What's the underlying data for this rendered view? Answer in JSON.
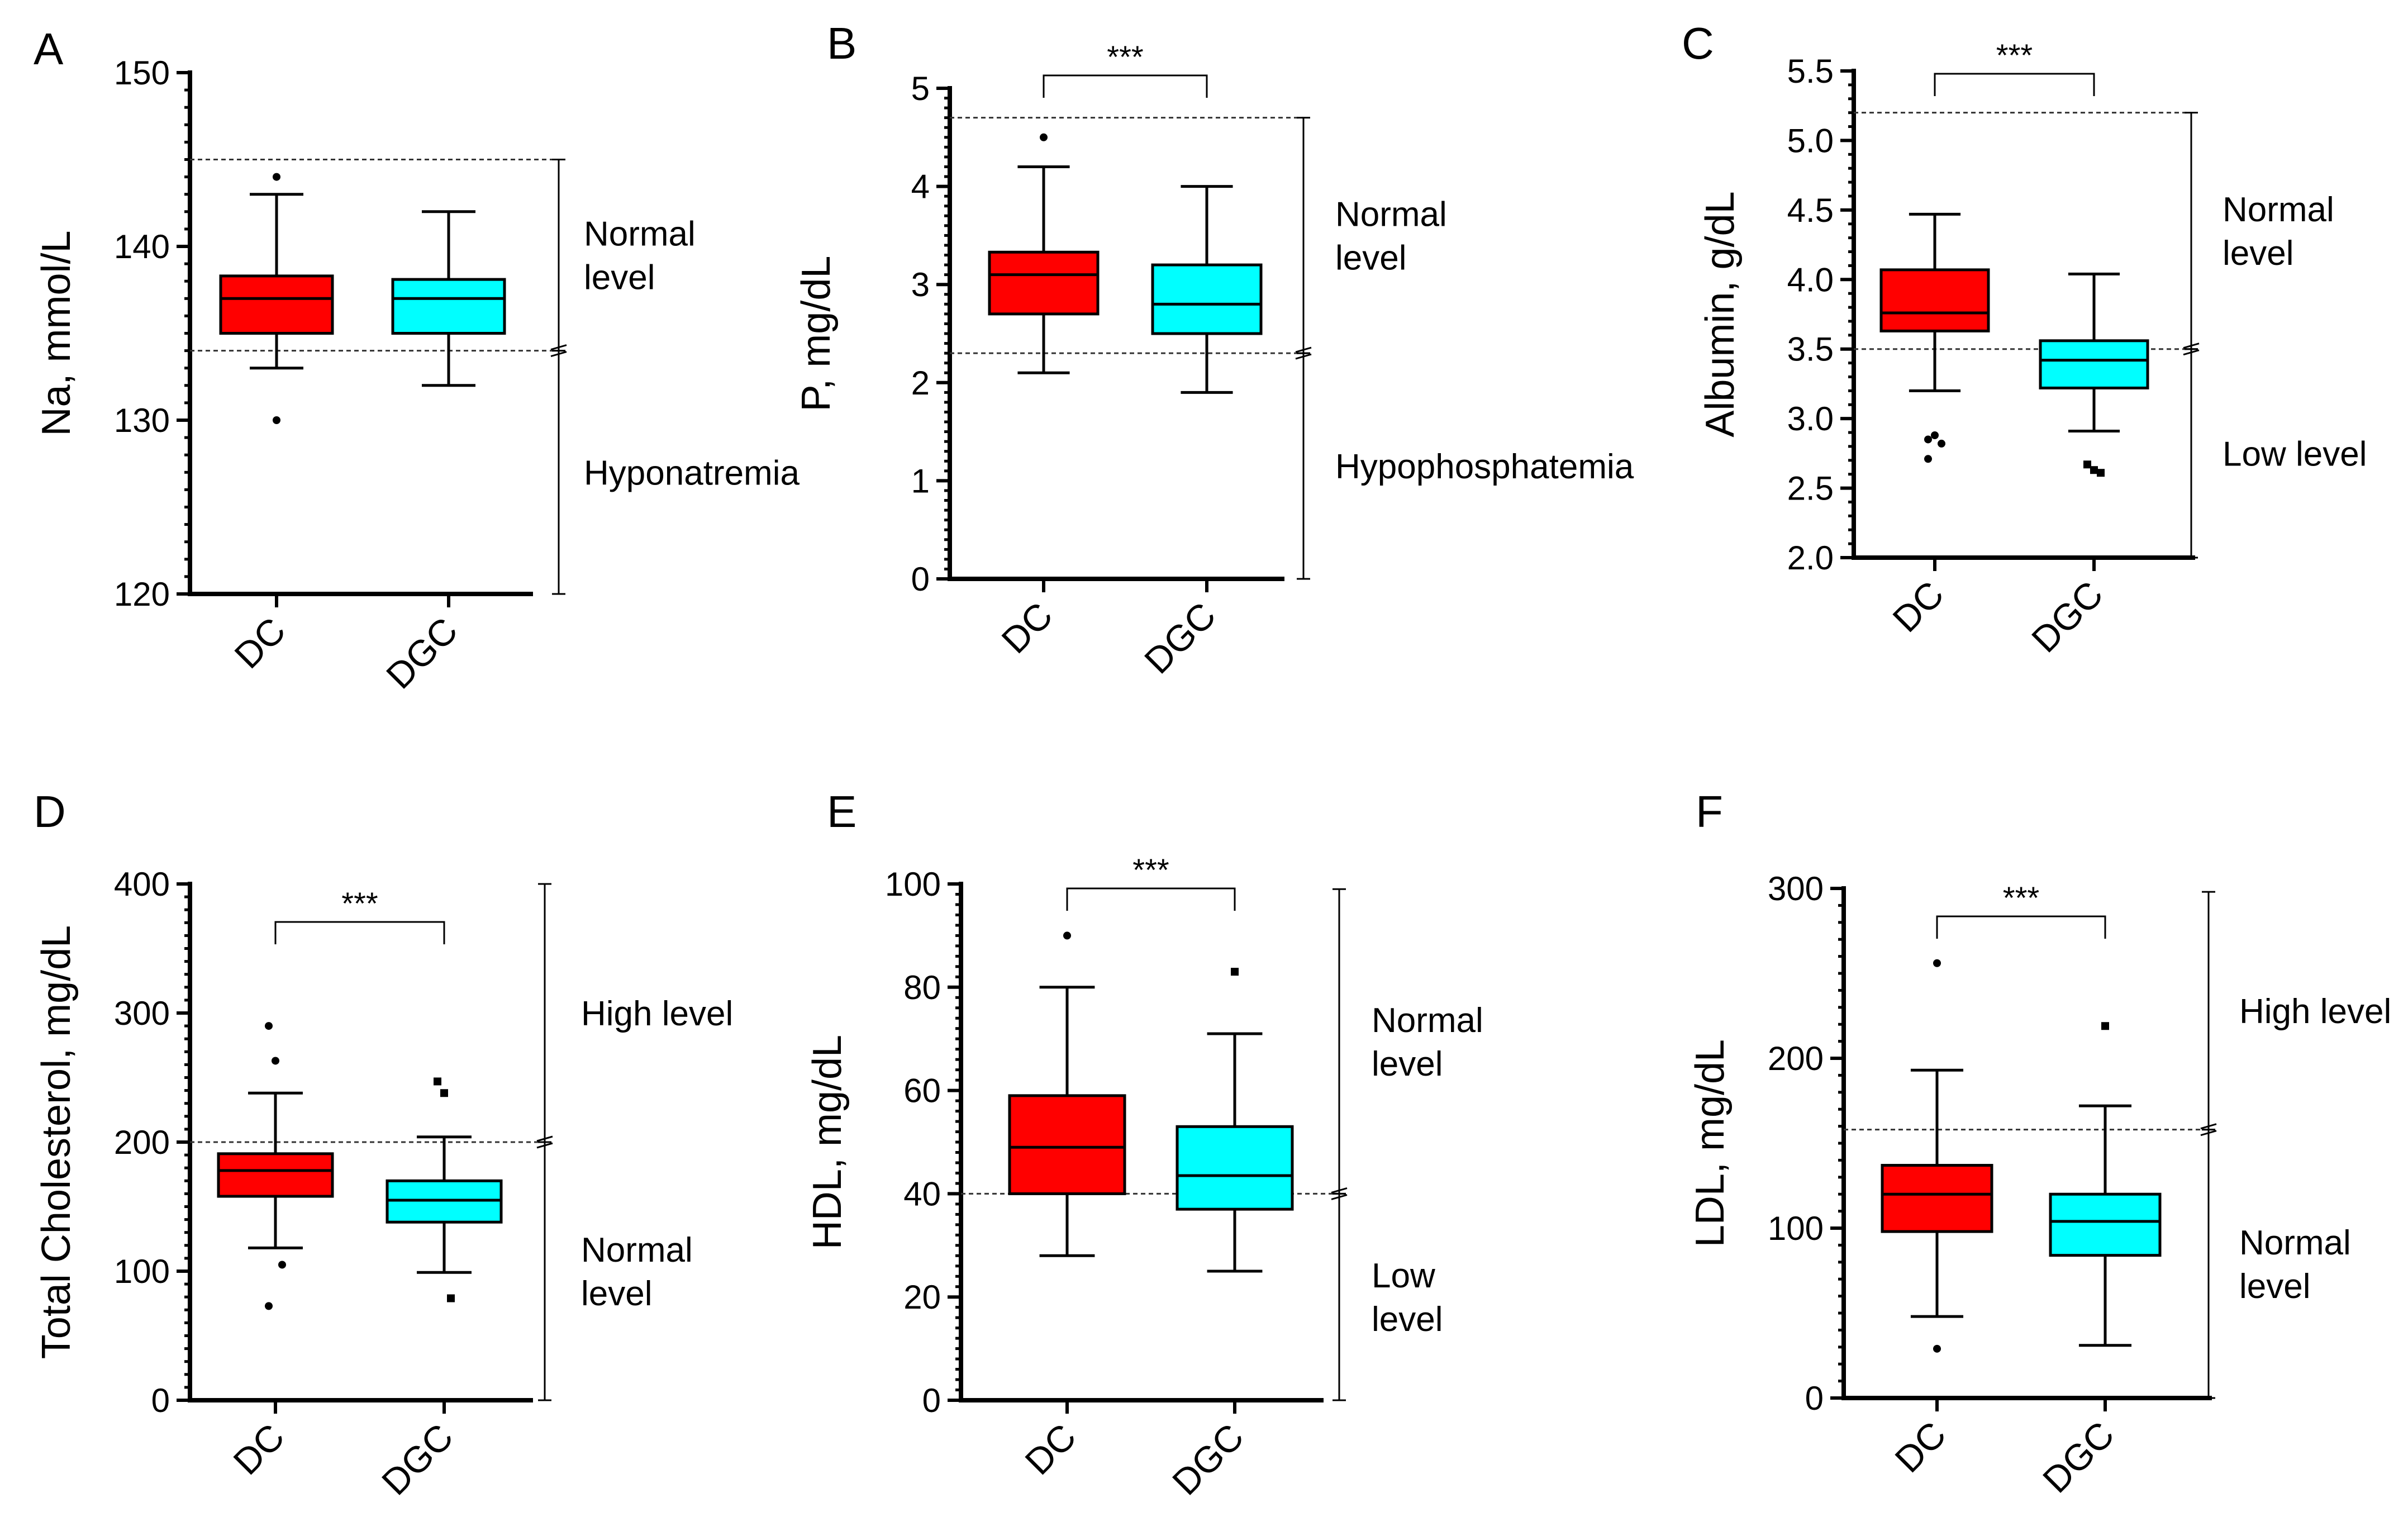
{
  "colors": {
    "DC": "#ff0000",
    "DGC": "#00ffff"
  },
  "chart_data": [
    {
      "panel": "A",
      "type": "box",
      "ylabel": "Na, mmol/L",
      "ylim": [
        120,
        150
      ],
      "yticks": [
        120,
        130,
        140,
        150
      ],
      "ytick_labels": [
        "120",
        "130",
        "140",
        "150"
      ],
      "minor_step": 1,
      "categories": [
        "DC",
        "DGC"
      ],
      "series": [
        {
          "name": "DC",
          "q1": 135,
          "median": 137,
          "q3": 138.3,
          "whisker_low": 133,
          "whisker_high": 143,
          "outliers": [
            144,
            130
          ],
          "marker": "circle"
        },
        {
          "name": "DGC",
          "q1": 135,
          "median": 137,
          "q3": 138.1,
          "whisker_low": 132,
          "whisker_high": 142,
          "outliers": [],
          "marker": "square"
        }
      ],
      "significance": "",
      "reference_lines": [
        145,
        134
      ],
      "range_labels": [
        {
          "from": 134,
          "to": 145,
          "lines": [
            "Normal",
            "level"
          ]
        },
        {
          "from": 120,
          "to": 134,
          "lines": [
            "Hyponatremia"
          ]
        }
      ]
    },
    {
      "panel": "B",
      "type": "box",
      "ylabel": "P, mg/dL",
      "ylim": [
        0,
        5
      ],
      "yticks": [
        0,
        1,
        2,
        3,
        4,
        5
      ],
      "ytick_labels": [
        "0",
        "1",
        "2",
        "3",
        "4",
        "5"
      ],
      "minor_step": 0.1,
      "categories": [
        "DC",
        "DGC"
      ],
      "series": [
        {
          "name": "DC",
          "q1": 2.7,
          "median": 3.1,
          "q3": 3.33,
          "whisker_low": 2.1,
          "whisker_high": 4.2,
          "outliers": [
            4.5
          ],
          "marker": "circle"
        },
        {
          "name": "DGC",
          "q1": 2.5,
          "median": 2.8,
          "q3": 3.2,
          "whisker_low": 1.9,
          "whisker_high": 4.0,
          "outliers": [],
          "marker": "square"
        }
      ],
      "significance": "***",
      "reference_lines": [
        4.7,
        2.3
      ],
      "range_labels": [
        {
          "from": 2.3,
          "to": 4.7,
          "lines": [
            "Normal",
            "level"
          ]
        },
        {
          "from": 0,
          "to": 2.3,
          "lines": [
            "Hypophosphatemia"
          ]
        }
      ]
    },
    {
      "panel": "C",
      "type": "box",
      "ylabel": "Albumin, g/dL",
      "ylim": [
        2.0,
        5.5
      ],
      "yticks": [
        2.0,
        2.5,
        3.0,
        3.5,
        4.0,
        4.5,
        5.0,
        5.5
      ],
      "ytick_labels": [
        "2.0",
        "2.5",
        "3.0",
        "3.5",
        "4.0",
        "4.5",
        "5.0",
        "5.5"
      ],
      "minor_step": 0.1,
      "categories": [
        "DC",
        "DGC"
      ],
      "series": [
        {
          "name": "DC",
          "q1": 3.63,
          "median": 3.76,
          "q3": 4.07,
          "whisker_low": 3.2,
          "whisker_high": 4.47,
          "outliers": [
            2.85,
            2.88,
            2.82,
            2.71
          ],
          "marker": "circle"
        },
        {
          "name": "DGC",
          "q1": 3.22,
          "median": 3.42,
          "q3": 3.56,
          "whisker_low": 2.91,
          "whisker_high": 4.04,
          "outliers": [
            2.67,
            2.63,
            2.61
          ],
          "marker": "square"
        }
      ],
      "significance": "***",
      "reference_lines": [
        5.2,
        3.5
      ],
      "range_labels": [
        {
          "from": 3.5,
          "to": 5.2,
          "lines": [
            "Normal",
            "level"
          ]
        },
        {
          "from": 2.0,
          "to": 3.5,
          "lines": [
            "Low level"
          ]
        }
      ]
    },
    {
      "panel": "D",
      "type": "box",
      "ylabel": "Total Cholesterol, mg/dL",
      "ylim": [
        0,
        400
      ],
      "yticks": [
        0,
        100,
        200,
        300,
        400
      ],
      "ytick_labels": [
        "0",
        "100",
        "200",
        "300",
        "400"
      ],
      "minor_step": 10,
      "categories": [
        "DC",
        "DGC"
      ],
      "series": [
        {
          "name": "DC",
          "q1": 158,
          "median": 178,
          "q3": 191,
          "whisker_low": 118,
          "whisker_high": 238,
          "outliers": [
            290,
            263,
            105,
            73
          ],
          "marker": "circle"
        },
        {
          "name": "DGC",
          "q1": 138,
          "median": 155,
          "q3": 170,
          "whisker_low": 99,
          "whisker_high": 204,
          "outliers": [
            247,
            238,
            79
          ],
          "marker": "square"
        }
      ],
      "significance": "***",
      "reference_lines": [
        200
      ],
      "range_labels": [
        {
          "from": 200,
          "to": 400,
          "lines": [
            "High level"
          ]
        },
        {
          "from": 0,
          "to": 200,
          "lines": [
            "Normal",
            "level"
          ]
        }
      ]
    },
    {
      "panel": "E",
      "type": "box",
      "ylabel": "HDL, mg/dL",
      "ylim": [
        0,
        100
      ],
      "yticks": [
        0,
        20,
        40,
        60,
        80,
        100
      ],
      "ytick_labels": [
        "0",
        "20",
        "40",
        "60",
        "80",
        "100"
      ],
      "minor_step": 2,
      "categories": [
        "DC",
        "DGC"
      ],
      "series": [
        {
          "name": "DC",
          "q1": 40,
          "median": 49,
          "q3": 59,
          "whisker_low": 28,
          "whisker_high": 80,
          "outliers": [
            90
          ],
          "marker": "circle"
        },
        {
          "name": "DGC",
          "q1": 37,
          "median": 43.5,
          "q3": 53,
          "whisker_low": 25,
          "whisker_high": 71,
          "outliers": [
            83
          ],
          "marker": "square"
        }
      ],
      "significance": "***",
      "reference_lines": [
        40
      ],
      "range_labels": [
        {
          "from": 40,
          "to": 99,
          "lines": [
            "Normal",
            "level"
          ]
        },
        {
          "from": 0,
          "to": 40,
          "lines": [
            "Low",
            "level"
          ]
        }
      ]
    },
    {
      "panel": "F",
      "type": "box",
      "ylabel": "LDL, mg/dL",
      "ylim": [
        0,
        300
      ],
      "yticks": [
        0,
        100,
        200,
        300
      ],
      "ytick_labels": [
        "0",
        "100",
        "200",
        "300"
      ],
      "minor_step": 10,
      "categories": [
        "DC",
        "DGC"
      ],
      "series": [
        {
          "name": "DC",
          "q1": 98,
          "median": 120,
          "q3": 137,
          "whisker_low": 48,
          "whisker_high": 193,
          "outliers": [
            256,
            29
          ],
          "marker": "circle"
        },
        {
          "name": "DGC",
          "q1": 84,
          "median": 104,
          "q3": 120,
          "whisker_low": 31,
          "whisker_high": 172,
          "outliers": [
            219
          ],
          "marker": "square"
        }
      ],
      "significance": "***",
      "reference_lines": [
        158
      ],
      "range_labels": [
        {
          "from": 158,
          "to": 298,
          "lines": [
            "High level"
          ]
        },
        {
          "from": 0,
          "to": 158,
          "lines": [
            "Normal",
            "level"
          ]
        }
      ]
    }
  ]
}
